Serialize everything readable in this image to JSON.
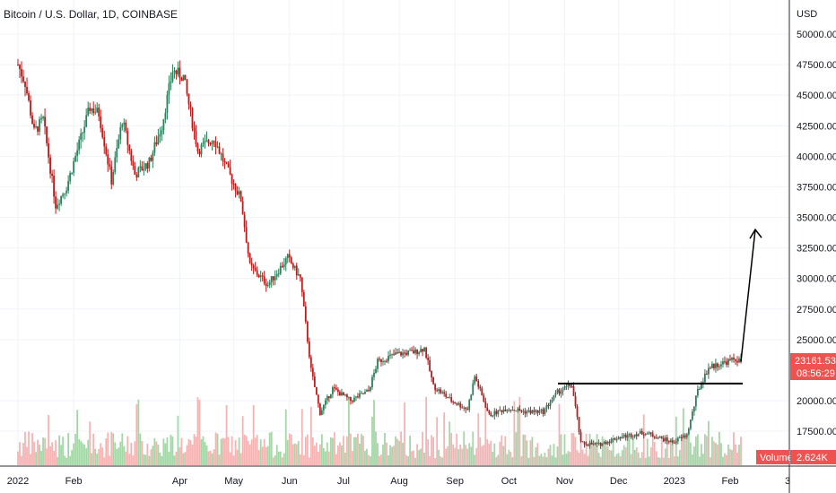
{
  "header": {
    "title": "Bitcoin / U.S. Dollar, 1D, COINBASE"
  },
  "colors": {
    "up": "#26a69a",
    "down": "#ef5350",
    "up_body": "#2e7d5b",
    "down_body": "#b71c1c",
    "volume_up": "#a5d6a7",
    "volume_down": "#f4b4b4",
    "price_label_bg": "#ef5350",
    "volume_badge_bg": "#ef5350",
    "volume_value_bg": "#ef5350"
  },
  "price_scale": {
    "currency": "USD",
    "ticks": [
      "50000.00",
      "47500.00",
      "45000.00",
      "42500.00",
      "40000.00",
      "37500.00",
      "35000.00",
      "32500.00",
      "30000.00",
      "27500.00",
      "25000.00",
      "20000.00",
      "17500.00"
    ]
  },
  "last_price": {
    "value": "23161.53",
    "countdown": "08:56:29"
  },
  "volume": {
    "label": "Volume",
    "value": "2.624K"
  },
  "time_axis": {
    "labels": [
      "2022",
      "Feb",
      "Apr",
      "May",
      "Jun",
      "Jul",
      "Aug",
      "Sep",
      "Oct",
      "Nov",
      "Dec",
      "2023",
      "Feb",
      "3"
    ]
  },
  "chart_data": {
    "type": "line",
    "title": "Bitcoin / U.S. Dollar, 1D, COINBASE",
    "ylabel": "USD",
    "ylim": [
      15000,
      52000
    ],
    "grid": true,
    "series": [
      {
        "values": [
          [
            "2022-01-01",
            47500
          ],
          [
            "2022-01-05",
            46000
          ],
          [
            "2022-01-10",
            42000
          ],
          [
            "2022-01-15",
            43000
          ],
          [
            "2022-01-22",
            36000
          ],
          [
            "2022-01-28",
            37500
          ],
          [
            "2022-02-05",
            41500
          ],
          [
            "2022-02-10",
            44000
          ],
          [
            "2022-02-15",
            43500
          ],
          [
            "2022-02-22",
            38000
          ],
          [
            "2022-02-28",
            43000
          ],
          [
            "2022-03-07",
            38500
          ],
          [
            "2022-03-15",
            39500
          ],
          [
            "2022-03-22",
            42500
          ],
          [
            "2022-03-28",
            47000
          ],
          [
            "2022-04-03",
            46500
          ],
          [
            "2022-04-11",
            40500
          ],
          [
            "2022-04-20",
            41500
          ],
          [
            "2022-04-27",
            39000
          ],
          [
            "2022-05-05",
            36500
          ],
          [
            "2022-05-10",
            31000
          ],
          [
            "2022-05-20",
            29500
          ],
          [
            "2022-05-31",
            31700
          ],
          [
            "2022-06-07",
            30000
          ],
          [
            "2022-06-13",
            22500
          ],
          [
            "2022-06-18",
            19000
          ],
          [
            "2022-06-25",
            21000
          ],
          [
            "2022-07-05",
            20000
          ],
          [
            "2022-07-15",
            20800
          ],
          [
            "2022-07-20",
            23200
          ],
          [
            "2022-07-30",
            23800
          ],
          [
            "2022-08-10",
            24000
          ],
          [
            "2022-08-15",
            24300
          ],
          [
            "2022-08-20",
            21200
          ],
          [
            "2022-08-30",
            20000
          ],
          [
            "2022-09-08",
            19300
          ],
          [
            "2022-09-12",
            22000
          ],
          [
            "2022-09-20",
            18800
          ],
          [
            "2022-09-30",
            19400
          ],
          [
            "2022-10-10",
            19100
          ],
          [
            "2022-10-20",
            19100
          ],
          [
            "2022-10-28",
            20700
          ],
          [
            "2022-11-05",
            21300
          ],
          [
            "2022-11-08",
            18500
          ],
          [
            "2022-11-10",
            16500
          ],
          [
            "2022-11-20",
            16400
          ],
          [
            "2022-12-01",
            17000
          ],
          [
            "2022-12-15",
            17400
          ],
          [
            "2022-12-31",
            16600
          ],
          [
            "2023-01-08",
            17200
          ],
          [
            "2023-01-14",
            20800
          ],
          [
            "2023-01-20",
            22700
          ],
          [
            "2023-01-28",
            23100
          ],
          [
            "2023-02-04",
            23400
          ],
          [
            "2023-02-07",
            23161.53
          ]
        ]
      }
    ],
    "annotations": [
      {
        "type": "horizontal_segment",
        "from": "2022-10-28",
        "to": "2023-02-07",
        "y": 21400
      },
      {
        "type": "arrow",
        "from": [
          "2023-02-07",
          23200
        ],
        "to": [
          "2023-02-12",
          34000
        ]
      }
    ]
  }
}
